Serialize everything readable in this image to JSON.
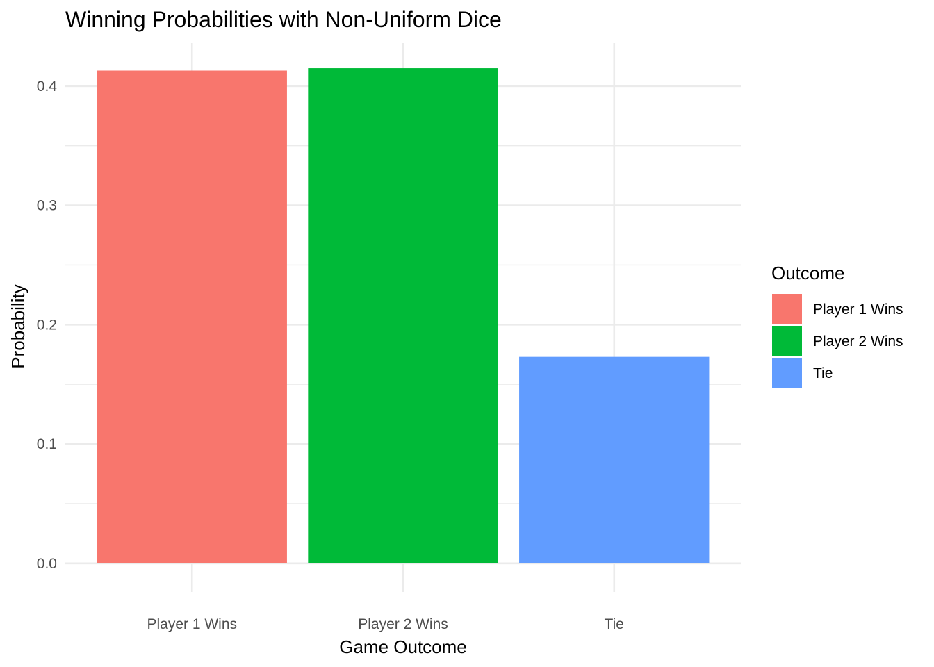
{
  "chart_data": {
    "type": "bar",
    "title": "Winning Probabilities with Non-Uniform Dice",
    "xlabel": "Game Outcome",
    "ylabel": "Probability",
    "categories": [
      "Player 1 Wins",
      "Player 2 Wins",
      "Tie"
    ],
    "values": [
      0.413,
      0.415,
      0.173
    ],
    "colors": [
      "#F8766D",
      "#00BA38",
      "#619CFF"
    ],
    "ylim": [
      -0.024,
      0.436
    ],
    "yticks": [
      0.0,
      0.1,
      0.2,
      0.3,
      0.4
    ],
    "ytick_labels": [
      "0.0",
      "0.1",
      "0.2",
      "0.3",
      "0.4"
    ],
    "grid": true,
    "legend": {
      "title": "Outcome",
      "placement": "right",
      "entries": [
        "Player 1 Wins",
        "Player 2 Wins",
        "Tie"
      ]
    }
  }
}
